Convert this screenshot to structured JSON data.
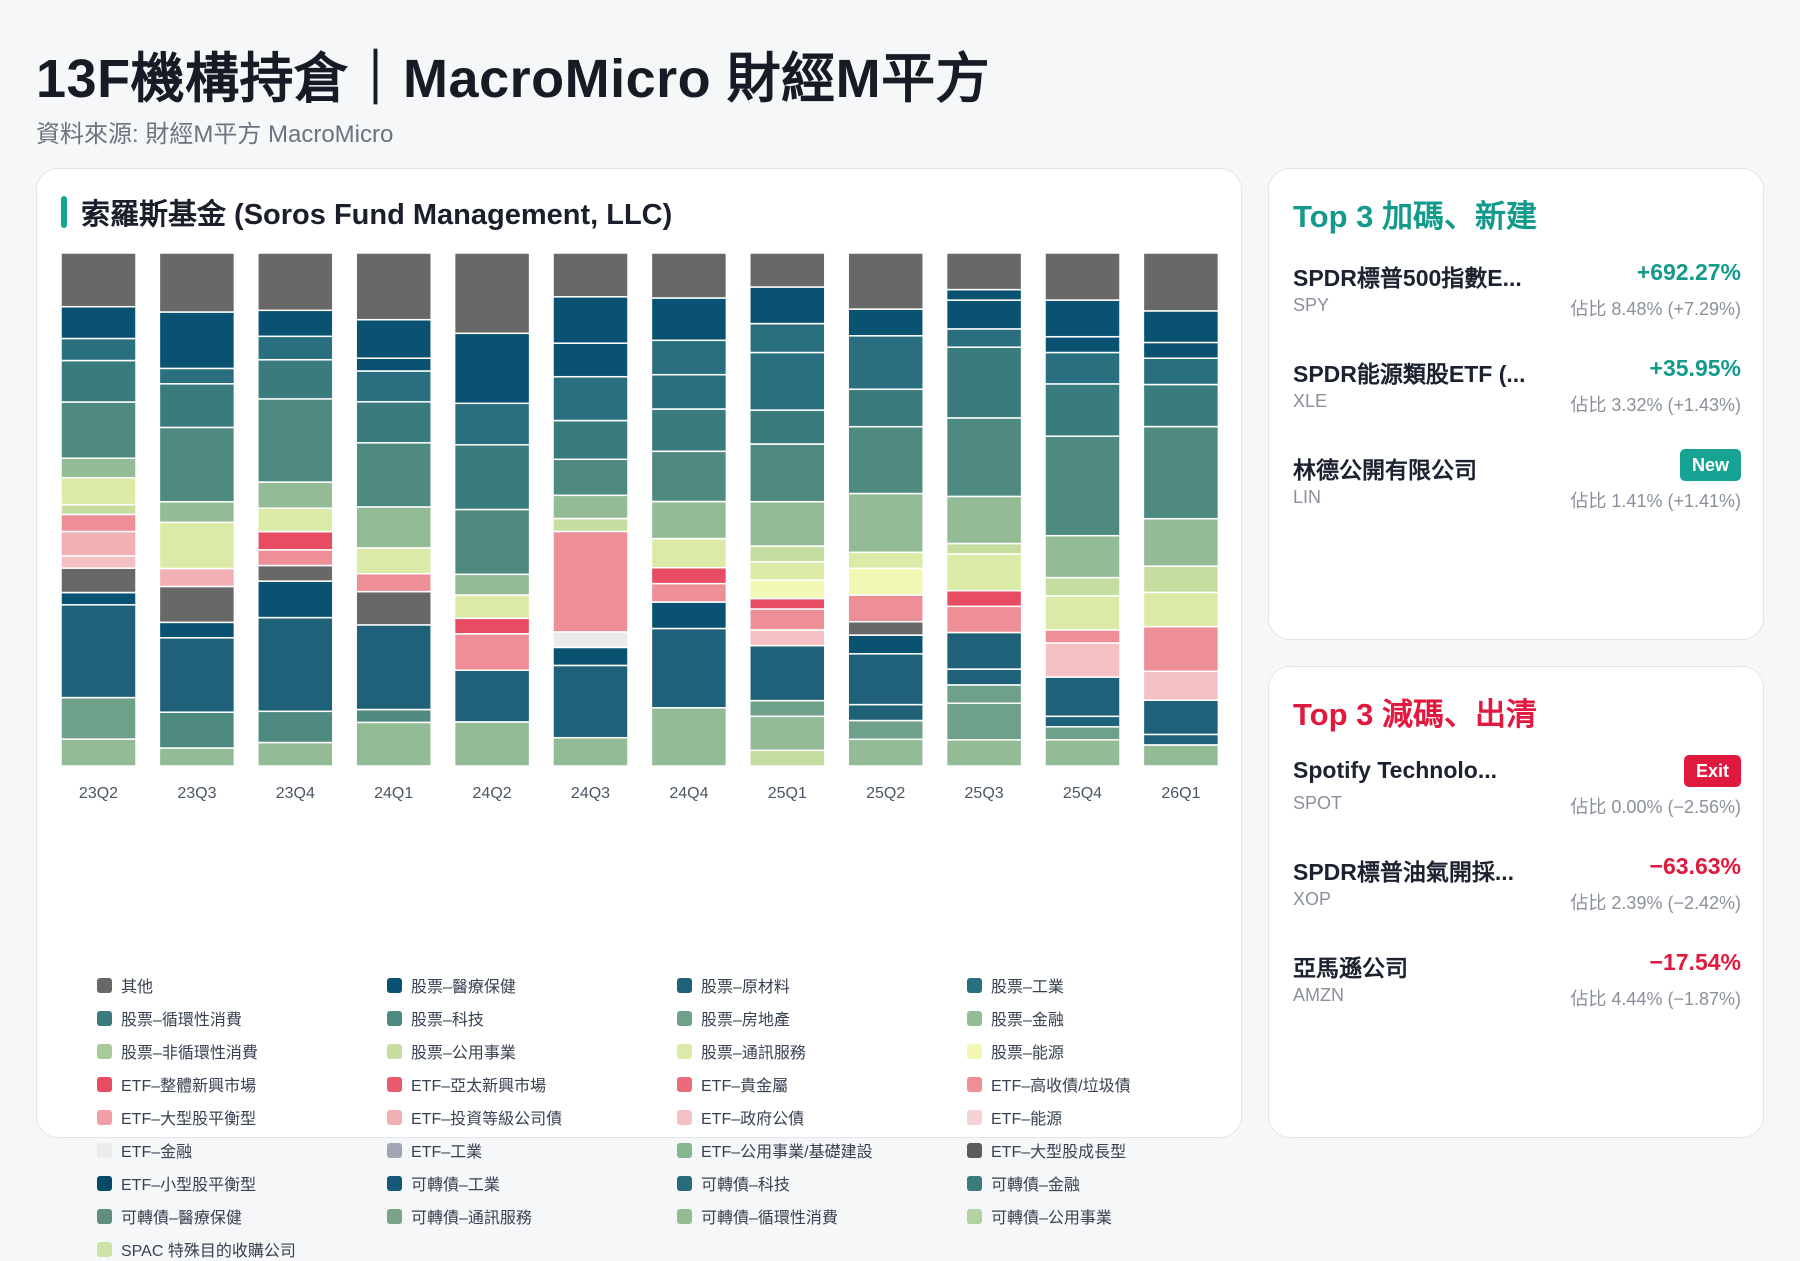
{
  "page": {
    "title": "13F機構持倉｜MacroMicro 財經M平方",
    "subtitle": "資料來源: 財經M平方 MacroMicro"
  },
  "main_card": {
    "title": "索羅斯基金 (Soros Fund Management, LLC)",
    "accent_color": "#16a394"
  },
  "chart_data": {
    "type": "bar",
    "stacked": true,
    "normalized": true,
    "categories": [
      "23Q2",
      "23Q3",
      "23Q4",
      "24Q1",
      "24Q2",
      "24Q3",
      "24Q4",
      "25Q1",
      "25Q2",
      "25Q3",
      "25Q4",
      "26Q1"
    ],
    "series_order_note": "values are percent of portfolio per segment, listed bottom-to-top",
    "columns": [
      {
        "segments": [
          [
            "股票–金融",
            5.5
          ],
          [
            "股票–房地產",
            8.5
          ],
          [
            "股票–原材料",
            19
          ],
          [
            "股票–醫療保健",
            2.5
          ],
          [
            "其他",
            5
          ],
          [
            "ETF–政府公債",
            2.5
          ],
          [
            "ETF–投資等級公司債",
            5
          ],
          [
            "ETF–高收債/垃圾債",
            3.5
          ],
          [
            "股票–公用事業",
            2
          ],
          [
            "股票–通訊服務",
            5.5
          ],
          [
            "股票–金融",
            4
          ],
          [
            "股票–科技",
            11.5
          ],
          [
            "股票–循環性消費",
            8.5
          ],
          [
            "股票–工業",
            4.5
          ],
          [
            "股票–醫療保健",
            6.5
          ],
          [
            "其他",
            11
          ]
        ]
      },
      {
        "segments": [
          [
            "股票–金融",
            3.5
          ],
          [
            "股票–科技",
            7
          ],
          [
            "股票–原材料",
            14.5
          ],
          [
            "股票–醫療保健",
            3
          ],
          [
            "其他",
            7
          ],
          [
            "ETF–投資等級公司債",
            3.5
          ],
          [
            "股票–通訊服務",
            9
          ],
          [
            "股票–金融",
            4
          ],
          [
            "股票–科技",
            14.5
          ],
          [
            "股票–循環性消費",
            8.5
          ],
          [
            "股票–工業",
            3
          ],
          [
            "股票–醫療保健",
            11
          ],
          [
            "其他",
            11.5
          ]
        ]
      },
      {
        "segments": [
          [
            "股票–金融",
            4.5
          ],
          [
            "股票–科技",
            6
          ],
          [
            "股票–原材料",
            18
          ],
          [
            "股票–醫療保健",
            7
          ],
          [
            "其他",
            3
          ],
          [
            "ETF–高收債/垃圾債",
            3
          ],
          [
            "ETF–整體新興市場",
            3.5
          ],
          [
            "股票–通訊服務",
            4.5
          ],
          [
            "股票–金融",
            5
          ],
          [
            "股票–科技",
            16
          ],
          [
            "股票–循環性消費",
            7.5
          ],
          [
            "股票–工業",
            4.5
          ],
          [
            "股票–醫療保健",
            5
          ],
          [
            "其他",
            11
          ]
        ]
      },
      {
        "segments": [
          [
            "股票–金融",
            8.5
          ],
          [
            "股票–科技",
            2.5
          ],
          [
            "股票–原材料",
            16.5
          ],
          [
            "其他",
            6.5
          ],
          [
            "ETF–高收債/垃圾債",
            3.5
          ],
          [
            "股票–通訊服務",
            5
          ],
          [
            "股票–金融",
            8
          ],
          [
            "股票–科技",
            12.5
          ],
          [
            "股票–循環性消費",
            8
          ],
          [
            "股票–工業",
            6
          ],
          [
            "股票–醫療保健",
            2.5
          ],
          [
            "股票–醫療保健",
            7.5
          ],
          [
            "其他",
            13
          ]
        ]
      },
      {
        "segments": [
          [
            "股票–金融",
            8.5
          ],
          [
            "股票–原材料",
            10
          ],
          [
            "ETF–高收債/垃圾債",
            7
          ],
          [
            "ETF–整體新興市場",
            3
          ],
          [
            "股票–通訊服務",
            4.5
          ],
          [
            "股票–金融",
            4
          ],
          [
            "股票–科技",
            12.5
          ],
          [
            "股票–循環性消費",
            12.5
          ],
          [
            "股票–工業",
            8
          ],
          [
            "股票–醫療保健",
            13.5
          ],
          [
            "其他",
            15.5
          ]
        ]
      },
      {
        "segments": [
          [
            "股票–金融",
            5.5
          ],
          [
            "股票–原材料",
            14
          ],
          [
            "股票–醫療保健",
            3.5
          ],
          [
            "ETF–金融",
            3
          ],
          [
            "ETF–高收債/垃圾債",
            19.5
          ],
          [
            "股票–公用事業",
            2.5
          ],
          [
            "股票–金融",
            4.5
          ],
          [
            "股票–科技",
            7
          ],
          [
            "股票–循環性消費",
            7.5
          ],
          [
            "股票–工業",
            8.5
          ],
          [
            "股票–醫療保健",
            6.5
          ],
          [
            "股票–醫療保健",
            9
          ],
          [
            "其他",
            8.5
          ]
        ]
      },
      {
        "segments": [
          [
            "股票–金融",
            11
          ],
          [
            "股票–原材料",
            15
          ],
          [
            "股票–醫療保健",
            5
          ],
          [
            "ETF–高收債/垃圾債",
            3.5
          ],
          [
            "ETF–整體新興市場",
            3
          ],
          [
            "股票–通訊服務",
            5.5
          ],
          [
            "股票–金融",
            7
          ],
          [
            "股票–科技",
            9.5
          ],
          [
            "股票–循環性消費",
            8
          ],
          [
            "股票–工業",
            6.5
          ],
          [
            "股票–工業",
            6.5
          ],
          [
            "股票–醫療保健",
            8
          ],
          [
            "其他",
            8.5
          ]
        ]
      },
      {
        "segments": [
          [
            "股票–公用事業",
            3
          ],
          [
            "股票–金融",
            6.5
          ],
          [
            "股票–房地產",
            3
          ],
          [
            "股票–原材料",
            10.5
          ],
          [
            "ETF–政府公債",
            3
          ],
          [
            "ETF–高收債/垃圾債",
            4
          ],
          [
            "ETF–整體新興市場",
            2
          ],
          [
            "股票–能源",
            3.5
          ],
          [
            "股票–通訊服務",
            3.5
          ],
          [
            "股票–公用事業",
            3
          ],
          [
            "股票–金融",
            8.5
          ],
          [
            "股票–科技",
            11
          ],
          [
            "股票–循環性消費",
            6.5
          ],
          [
            "股票–工業",
            11
          ],
          [
            "股票–工業",
            5.5
          ],
          [
            "股票–醫療保健",
            7
          ],
          [
            "其他",
            6.5
          ]
        ]
      },
      {
        "segments": [
          [
            "股票–金融",
            5
          ],
          [
            "股票–房地產",
            3.5
          ],
          [
            "股票–原材料",
            3
          ],
          [
            "股票–原材料",
            9.5
          ],
          [
            "股票–醫療保健",
            3.5
          ],
          [
            "其他",
            2.5
          ],
          [
            "ETF–高收債/垃圾債",
            5
          ],
          [
            "股票–能源",
            5
          ],
          [
            "股票–通訊服務",
            3
          ],
          [
            "股票–金融",
            11
          ],
          [
            "股票–科技",
            12.5
          ],
          [
            "股票–循環性消費",
            7
          ],
          [
            "股票–工業",
            10
          ],
          [
            "股票–醫療保健",
            5
          ],
          [
            "其他",
            10.5
          ]
        ]
      },
      {
        "segments": [
          [
            "股票–金融",
            5
          ],
          [
            "股票–房地產",
            7
          ],
          [
            "股票–房地產",
            3.5
          ],
          [
            "股票–原材料",
            3
          ],
          [
            "股票–原材料",
            7
          ],
          [
            "ETF–高收債/垃圾債",
            5
          ],
          [
            "ETF–整體新興市場",
            3
          ],
          [
            "股票–通訊服務",
            7
          ],
          [
            "股票–公用事業",
            2
          ],
          [
            "股票–金融",
            9
          ],
          [
            "股票–科技",
            15
          ],
          [
            "股票–循環性消費",
            13.5
          ],
          [
            "股票–工業",
            3.5
          ],
          [
            "股票–醫療保健",
            5.5
          ],
          [
            "股票–醫療保健",
            2
          ],
          [
            "其他",
            7
          ]
        ]
      },
      {
        "segments": [
          [
            "股票–金融",
            5
          ],
          [
            "股票–房地產",
            2.5
          ],
          [
            "股票–原材料",
            2
          ],
          [
            "股票–原材料",
            7.5
          ],
          [
            "ETF–政府公債",
            6.5
          ],
          [
            "ETF–高收債/垃圾債",
            2.5
          ],
          [
            "股票–通訊服務",
            6.5
          ],
          [
            "股票–公用事業",
            3.5
          ],
          [
            "股票–金融",
            8
          ],
          [
            "股票–科技",
            19
          ],
          [
            "股票–循環性消費",
            10
          ],
          [
            "股票–工業",
            6
          ],
          [
            "股票–醫療保健",
            3
          ],
          [
            "股票–醫療保健",
            7
          ],
          [
            "其他",
            9
          ]
        ]
      },
      {
        "segments": [
          [
            "股票–金融",
            4
          ],
          [
            "股票–原材料",
            2
          ],
          [
            "股票–原材料",
            6.5
          ],
          [
            "ETF–政府公債",
            5.5
          ],
          [
            "ETF–高收債/垃圾債",
            8.5
          ],
          [
            "股票–通訊服務",
            6.5
          ],
          [
            "股票–公用事業",
            5
          ],
          [
            "股票–金融",
            9
          ],
          [
            "股票–科技",
            17.5
          ],
          [
            "股票–循環性消費",
            8
          ],
          [
            "股票–工業",
            5
          ],
          [
            "股票–醫療保健",
            3
          ],
          [
            "股票–醫療保健",
            6
          ],
          [
            "其他",
            11
          ]
        ]
      }
    ],
    "legend": [
      {
        "name": "其他",
        "color": "#686868"
      },
      {
        "name": "股票–醫療保健",
        "color": "#0a5272"
      },
      {
        "name": "股票–原材料",
        "color": "#20617a"
      },
      {
        "name": "股票–工業",
        "color": "#2a6f7f"
      },
      {
        "name": "股票–循環性消費",
        "color": "#3a7c7e"
      },
      {
        "name": "股票–科技",
        "color": "#4f8a80"
      },
      {
        "name": "股票–房地產",
        "color": "#6fa08a"
      },
      {
        "name": "股票–金融",
        "color": "#93bb96"
      },
      {
        "name": "股票–非循環性消費",
        "color": "#a8c998"
      },
      {
        "name": "股票–公用事業",
        "color": "#c5dea0"
      },
      {
        "name": "股票–通訊服務",
        "color": "#dbeaa6"
      },
      {
        "name": "股票–能源",
        "color": "#f3f7b4"
      },
      {
        "name": "ETF–整體新興市場",
        "color": "#e74c63"
      },
      {
        "name": "ETF–亞太新興市場",
        "color": "#ea5a6e"
      },
      {
        "name": "ETF–貴金屬",
        "color": "#ec6b7a"
      },
      {
        "name": "ETF–高收債/垃圾債",
        "color": "#ee8e97"
      },
      {
        "name": "ETF–大型股平衡型",
        "color": "#f29ea6"
      },
      {
        "name": "ETF–投資等級公司債",
        "color": "#f2b0b5"
      },
      {
        "name": "ETF–政府公債",
        "color": "#f3c0c3"
      },
      {
        "name": "ETF–能源",
        "color": "#f3d3d5"
      },
      {
        "name": "ETF–金融",
        "color": "#ebebeb"
      },
      {
        "name": "ETF–工業",
        "color": "#a0a6b4"
      },
      {
        "name": "ETF–公用事業/基礎建設",
        "color": "#85b68f"
      },
      {
        "name": "ETF–大型股成長型",
        "color": "#5c5c5c"
      },
      {
        "name": "ETF–小型股平衡型",
        "color": "#064a68"
      },
      {
        "name": "可轉債–工業",
        "color": "#15587a"
      },
      {
        "name": "可轉債–科技",
        "color": "#286b7c"
      },
      {
        "name": "可轉債–金融",
        "color": "#3c7b7b"
      },
      {
        "name": "可轉債–醫療保健",
        "color": "#5e8f7f"
      },
      {
        "name": "可轉債–通訊服務",
        "color": "#7aa488"
      },
      {
        "name": "可轉債–循環性消費",
        "color": "#95bb93"
      },
      {
        "name": "可轉債–公用事業",
        "color": "#b2d29f"
      },
      {
        "name": "SPAC 特殊目的收購公司",
        "color": "#cfe3a8"
      }
    ]
  },
  "top_add": {
    "title": "Top 3 加碼、新建",
    "items": [
      {
        "name": "SPDR標普500指數E...",
        "ticker": "SPY",
        "change": "+692.27%",
        "weight": "佔比 8.48% (+7.29%)"
      },
      {
        "name": "SPDR能源類股ETF (...",
        "ticker": "XLE",
        "change": "+35.95%",
        "weight": "佔比 3.32% (+1.43%)"
      },
      {
        "name": "林德公開有限公司",
        "ticker": "LIN",
        "badge": "New",
        "weight": "佔比 1.41% (+1.41%)"
      }
    ]
  },
  "top_reduce": {
    "title": "Top 3 減碼、出清",
    "items": [
      {
        "name": "Spotify Technolo...",
        "ticker": "SPOT",
        "badge": "Exit",
        "weight": "佔比 0.00% (−2.56%)"
      },
      {
        "name": "SPDR標普油氣開採...",
        "ticker": "XOP",
        "change": "−63.63%",
        "weight": "佔比 2.39% (−2.42%)"
      },
      {
        "name": "亞馬遜公司",
        "ticker": "AMZN",
        "change": "−17.54%",
        "weight": "佔比 4.44% (−1.87%)"
      }
    ]
  }
}
